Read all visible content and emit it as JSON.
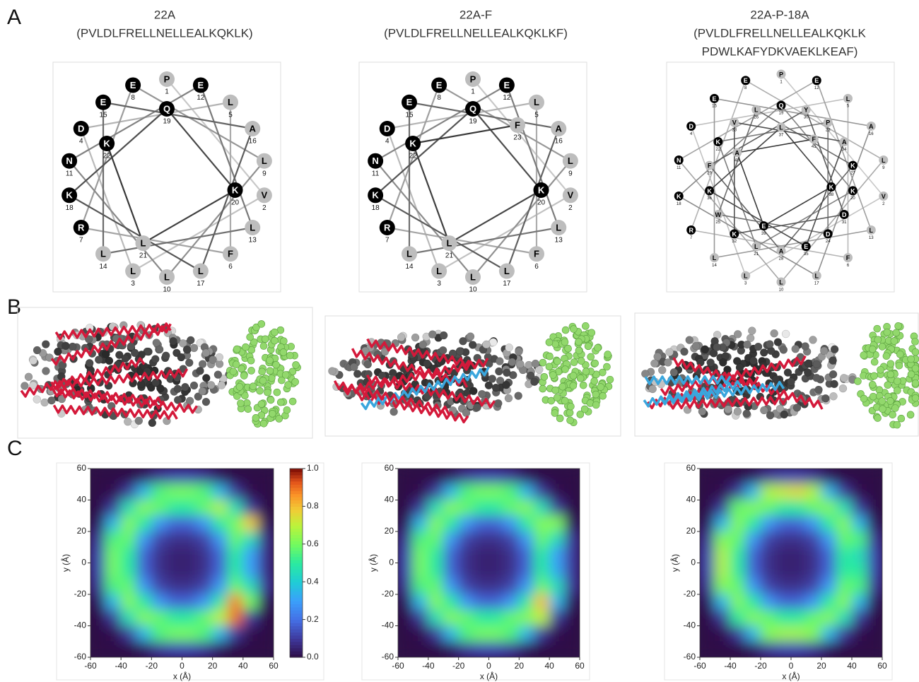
{
  "panel_labels": [
    "A",
    "B",
    "C"
  ],
  "residue_colors": {
    "charged": "#000000",
    "neutral": "#bdbdbd"
  },
  "wheels": [
    {
      "title": "22A",
      "sequence": [
        "(PVLDLFRELLNELLEALKQKLK)"
      ],
      "residues": [
        [
          "P",
          1,
          false
        ],
        [
          "V",
          2,
          false
        ],
        [
          "L",
          3,
          false
        ],
        [
          "D",
          4,
          true
        ],
        [
          "L",
          5,
          false
        ],
        [
          "F",
          6,
          false
        ],
        [
          "R",
          7,
          true
        ],
        [
          "E",
          8,
          true
        ],
        [
          "L",
          9,
          false
        ],
        [
          "L",
          10,
          false
        ],
        [
          "N",
          11,
          true
        ],
        [
          "E",
          12,
          true
        ],
        [
          "L",
          13,
          false
        ],
        [
          "L",
          14,
          false
        ],
        [
          "E",
          15,
          true
        ],
        [
          "A",
          16,
          false
        ],
        [
          "L",
          17,
          false
        ],
        [
          "K",
          18,
          true
        ],
        [
          "Q",
          19,
          true
        ],
        [
          "K",
          20,
          true
        ],
        [
          "L",
          21,
          false
        ],
        [
          "K",
          22,
          true
        ]
      ]
    },
    {
      "title": "22A-F",
      "sequence": [
        "(PVLDLFRELLNELLEALKQKLKF)"
      ],
      "residues": [
        [
          "P",
          1,
          false
        ],
        [
          "V",
          2,
          false
        ],
        [
          "L",
          3,
          false
        ],
        [
          "D",
          4,
          true
        ],
        [
          "L",
          5,
          false
        ],
        [
          "F",
          6,
          false
        ],
        [
          "R",
          7,
          true
        ],
        [
          "E",
          8,
          true
        ],
        [
          "L",
          9,
          false
        ],
        [
          "L",
          10,
          false
        ],
        [
          "N",
          11,
          true
        ],
        [
          "E",
          12,
          true
        ],
        [
          "L",
          13,
          false
        ],
        [
          "L",
          14,
          false
        ],
        [
          "E",
          15,
          true
        ],
        [
          "A",
          16,
          false
        ],
        [
          "L",
          17,
          false
        ],
        [
          "K",
          18,
          true
        ],
        [
          "Q",
          19,
          true
        ],
        [
          "K",
          20,
          true
        ],
        [
          "L",
          21,
          false
        ],
        [
          "K",
          22,
          true
        ],
        [
          "F",
          23,
          false
        ]
      ]
    },
    {
      "title": "22A-P-18A",
      "sequence": [
        "(PVLDLFRELLNELLEALKQKLK",
        "PDWLKAFYDKVAEKLKEAF)"
      ],
      "residues": [
        [
          "P",
          1,
          false
        ],
        [
          "V",
          2,
          false
        ],
        [
          "L",
          3,
          false
        ],
        [
          "D",
          4,
          true
        ],
        [
          "L",
          5,
          false
        ],
        [
          "F",
          6,
          false
        ],
        [
          "R",
          7,
          true
        ],
        [
          "E",
          8,
          true
        ],
        [
          "L",
          9,
          false
        ],
        [
          "L",
          10,
          false
        ],
        [
          "N",
          11,
          true
        ],
        [
          "E",
          12,
          true
        ],
        [
          "L",
          13,
          false
        ],
        [
          "L",
          14,
          false
        ],
        [
          "E",
          15,
          true
        ],
        [
          "A",
          16,
          false
        ],
        [
          "L",
          17,
          false
        ],
        [
          "K",
          18,
          true
        ],
        [
          "Q",
          19,
          true
        ],
        [
          "K",
          20,
          true
        ],
        [
          "L",
          21,
          false
        ],
        [
          "K",
          22,
          true
        ],
        [
          "P",
          23,
          false
        ],
        [
          "D",
          24,
          true
        ],
        [
          "W",
          25,
          false
        ],
        [
          "L",
          26,
          false
        ],
        [
          "K",
          27,
          true
        ],
        [
          "A",
          28,
          false
        ],
        [
          "F",
          29,
          false
        ],
        [
          "Y",
          30,
          false
        ],
        [
          "D",
          31,
          true
        ],
        [
          "K",
          32,
          true
        ],
        [
          "V",
          33,
          false
        ],
        [
          "A",
          34,
          false
        ],
        [
          "E",
          35,
          true
        ],
        [
          "K",
          36,
          true
        ],
        [
          "L",
          37,
          false
        ],
        [
          "K",
          38,
          true
        ],
        [
          "E",
          39,
          true
        ],
        [
          "A",
          40,
          false
        ],
        [
          "F",
          41,
          false
        ]
      ]
    }
  ],
  "chart_data": [
    {
      "type": "heatmap",
      "xlabel": "x (Å)",
      "ylabel": "y (Å)",
      "xlim": [
        -60,
        60
      ],
      "ylim": [
        -60,
        60
      ],
      "xticks": [
        -60,
        -40,
        -20,
        0,
        20,
        40,
        60
      ],
      "yticks": [
        -60,
        -40,
        -20,
        0,
        20,
        40,
        60
      ],
      "x": [
        -55,
        -45,
        -35,
        -25,
        -15,
        -5,
        5,
        15,
        25,
        35,
        45,
        55
      ],
      "y": [
        55,
        45,
        35,
        25,
        15,
        5,
        -5,
        -15,
        -25,
        -35,
        -45,
        -55
      ],
      "colormap": "turbo",
      "clim": [
        0,
        1
      ],
      "colorbar": {
        "ticks": [
          {
            "value": 0,
            "label": "0.0"
          },
          {
            "value": 0.2,
            "label": "0.2"
          },
          {
            "value": 0.4,
            "label": "0.4"
          },
          {
            "value": 0.6,
            "label": "0.6"
          },
          {
            "value": 0.8,
            "label": "0.8"
          },
          {
            "value": 1,
            "label": "1.0"
          }
        ]
      },
      "values": [
        [
          0,
          0,
          0,
          0.03,
          0.1,
          0.13,
          0.13,
          0.1,
          0.03,
          0,
          0,
          0
        ],
        [
          0,
          0.01,
          0.1,
          0.35,
          0.55,
          0.6,
          0.6,
          0.55,
          0.35,
          0.1,
          0.01,
          0
        ],
        [
          0,
          0.1,
          0.45,
          0.62,
          0.58,
          0.5,
          0.5,
          0.58,
          0.68,
          0.45,
          0.1,
          0
        ],
        [
          0.03,
          0.35,
          0.62,
          0.5,
          0.28,
          0.18,
          0.18,
          0.28,
          0.5,
          0.6,
          0.78,
          0.03
        ],
        [
          0.1,
          0.55,
          0.58,
          0.28,
          0.12,
          0.08,
          0.08,
          0.12,
          0.28,
          0.58,
          0.45,
          0.08
        ],
        [
          0.13,
          0.6,
          0.5,
          0.18,
          0.08,
          0.05,
          0.05,
          0.08,
          0.18,
          0.5,
          0.3,
          0.08
        ],
        [
          0.13,
          0.6,
          0.5,
          0.18,
          0.08,
          0.05,
          0.05,
          0.08,
          0.18,
          0.5,
          0.3,
          0.08
        ],
        [
          0.1,
          0.55,
          0.58,
          0.28,
          0.12,
          0.08,
          0.08,
          0.12,
          0.28,
          0.58,
          0.45,
          0.1
        ],
        [
          0.03,
          0.35,
          0.62,
          0.5,
          0.28,
          0.18,
          0.18,
          0.28,
          0.5,
          0.88,
          0.6,
          0.03
        ],
        [
          0,
          0.1,
          0.45,
          0.62,
          0.58,
          0.5,
          0.5,
          0.58,
          0.7,
          0.9,
          0.1,
          0
        ],
        [
          0,
          0.01,
          0.1,
          0.35,
          0.55,
          0.6,
          0.6,
          0.55,
          0.35,
          0.1,
          0.01,
          0
        ],
        [
          0,
          0,
          0,
          0.03,
          0.1,
          0.13,
          0.13,
          0.1,
          0.03,
          0,
          0,
          0
        ]
      ]
    },
    {
      "type": "heatmap",
      "xlabel": "x (Å)",
      "ylabel": "y (Å)",
      "xlim": [
        -60,
        60
      ],
      "ylim": [
        -60,
        60
      ],
      "xticks": [
        -60,
        -40,
        -20,
        0,
        20,
        40,
        60
      ],
      "yticks": [
        -60,
        -40,
        -20,
        0,
        20,
        40,
        60
      ],
      "x": [
        -55,
        -45,
        -35,
        -25,
        -15,
        -5,
        5,
        15,
        25,
        35,
        45,
        55
      ],
      "y": [
        55,
        45,
        35,
        25,
        15,
        5,
        -5,
        -15,
        -25,
        -35,
        -45,
        -55
      ],
      "colormap": "turbo",
      "clim": [
        0,
        1
      ],
      "values": [
        [
          0,
          0,
          0,
          0.03,
          0.1,
          0.13,
          0.13,
          0.1,
          0.03,
          0,
          0,
          0
        ],
        [
          0,
          0.01,
          0.1,
          0.35,
          0.55,
          0.6,
          0.6,
          0.55,
          0.35,
          0.1,
          0.01,
          0
        ],
        [
          0,
          0.1,
          0.45,
          0.62,
          0.58,
          0.5,
          0.5,
          0.58,
          0.62,
          0.45,
          0.1,
          0
        ],
        [
          0.03,
          0.35,
          0.62,
          0.5,
          0.28,
          0.18,
          0.18,
          0.28,
          0.5,
          0.62,
          0.62,
          0.03
        ],
        [
          0.1,
          0.55,
          0.58,
          0.28,
          0.12,
          0.08,
          0.08,
          0.12,
          0.28,
          0.58,
          0.45,
          0.1
        ],
        [
          0.13,
          0.6,
          0.5,
          0.18,
          0.08,
          0.05,
          0.05,
          0.08,
          0.18,
          0.5,
          0.3,
          0.1
        ],
        [
          0.13,
          0.6,
          0.5,
          0.18,
          0.08,
          0.05,
          0.05,
          0.08,
          0.18,
          0.5,
          0.32,
          0.1
        ],
        [
          0.1,
          0.55,
          0.58,
          0.28,
          0.12,
          0.08,
          0.08,
          0.12,
          0.28,
          0.58,
          0.45,
          0.1
        ],
        [
          0.03,
          0.35,
          0.62,
          0.5,
          0.28,
          0.18,
          0.18,
          0.28,
          0.5,
          0.8,
          0.35,
          0.03
        ],
        [
          0,
          0.1,
          0.45,
          0.62,
          0.58,
          0.5,
          0.5,
          0.58,
          0.62,
          0.7,
          0.1,
          0
        ],
        [
          0,
          0.01,
          0.1,
          0.35,
          0.55,
          0.6,
          0.6,
          0.55,
          0.35,
          0.1,
          0.01,
          0
        ],
        [
          0,
          0,
          0,
          0.03,
          0.1,
          0.13,
          0.13,
          0.1,
          0.03,
          0,
          0,
          0
        ]
      ]
    },
    {
      "type": "heatmap",
      "xlabel": "x (Å)",
      "ylabel": "y (Å)",
      "xlim": [
        -60,
        60
      ],
      "ylim": [
        -60,
        60
      ],
      "xticks": [
        -60,
        -40,
        -20,
        0,
        20,
        40,
        60
      ],
      "yticks": [
        -60,
        -40,
        -20,
        0,
        20,
        40,
        60
      ],
      "x": [
        -55,
        -45,
        -35,
        -25,
        -15,
        -5,
        5,
        15,
        25,
        35,
        45,
        55
      ],
      "y": [
        55,
        45,
        35,
        25,
        15,
        5,
        -5,
        -15,
        -25,
        -35,
        -45,
        -55
      ],
      "colormap": "turbo",
      "clim": [
        0,
        1
      ],
      "values": [
        [
          0,
          0,
          0,
          0.03,
          0.1,
          0.13,
          0.13,
          0.1,
          0.03,
          0,
          0,
          0
        ],
        [
          0,
          0.01,
          0.1,
          0.35,
          0.68,
          0.72,
          0.75,
          0.68,
          0.35,
          0.1,
          0.01,
          0
        ],
        [
          0,
          0.1,
          0.58,
          0.62,
          0.58,
          0.5,
          0.5,
          0.58,
          0.62,
          0.45,
          0.1,
          0
        ],
        [
          0.03,
          0.35,
          0.62,
          0.5,
          0.28,
          0.18,
          0.18,
          0.28,
          0.5,
          0.62,
          0.35,
          0.03
        ],
        [
          0.1,
          0.62,
          0.58,
          0.28,
          0.12,
          0.08,
          0.08,
          0.12,
          0.28,
          0.58,
          0.55,
          0.1
        ],
        [
          0.13,
          0.68,
          0.5,
          0.18,
          0.08,
          0.05,
          0.05,
          0.08,
          0.18,
          0.5,
          0.45,
          0.13
        ],
        [
          0.13,
          0.68,
          0.5,
          0.18,
          0.08,
          0.05,
          0.05,
          0.08,
          0.18,
          0.5,
          0.5,
          0.13
        ],
        [
          0.1,
          0.62,
          0.58,
          0.28,
          0.12,
          0.08,
          0.08,
          0.12,
          0.28,
          0.58,
          0.55,
          0.1
        ],
        [
          0.03,
          0.35,
          0.62,
          0.5,
          0.28,
          0.18,
          0.18,
          0.28,
          0.5,
          0.62,
          0.35,
          0.03
        ],
        [
          0,
          0.1,
          0.5,
          0.62,
          0.58,
          0.5,
          0.5,
          0.58,
          0.62,
          0.45,
          0.1,
          0
        ],
        [
          0,
          0.01,
          0.1,
          0.35,
          0.62,
          0.66,
          0.66,
          0.62,
          0.35,
          0.1,
          0.01,
          0
        ],
        [
          0,
          0,
          0,
          0.03,
          0.1,
          0.13,
          0.13,
          0.1,
          0.03,
          0,
          0,
          0
        ]
      ]
    }
  ]
}
